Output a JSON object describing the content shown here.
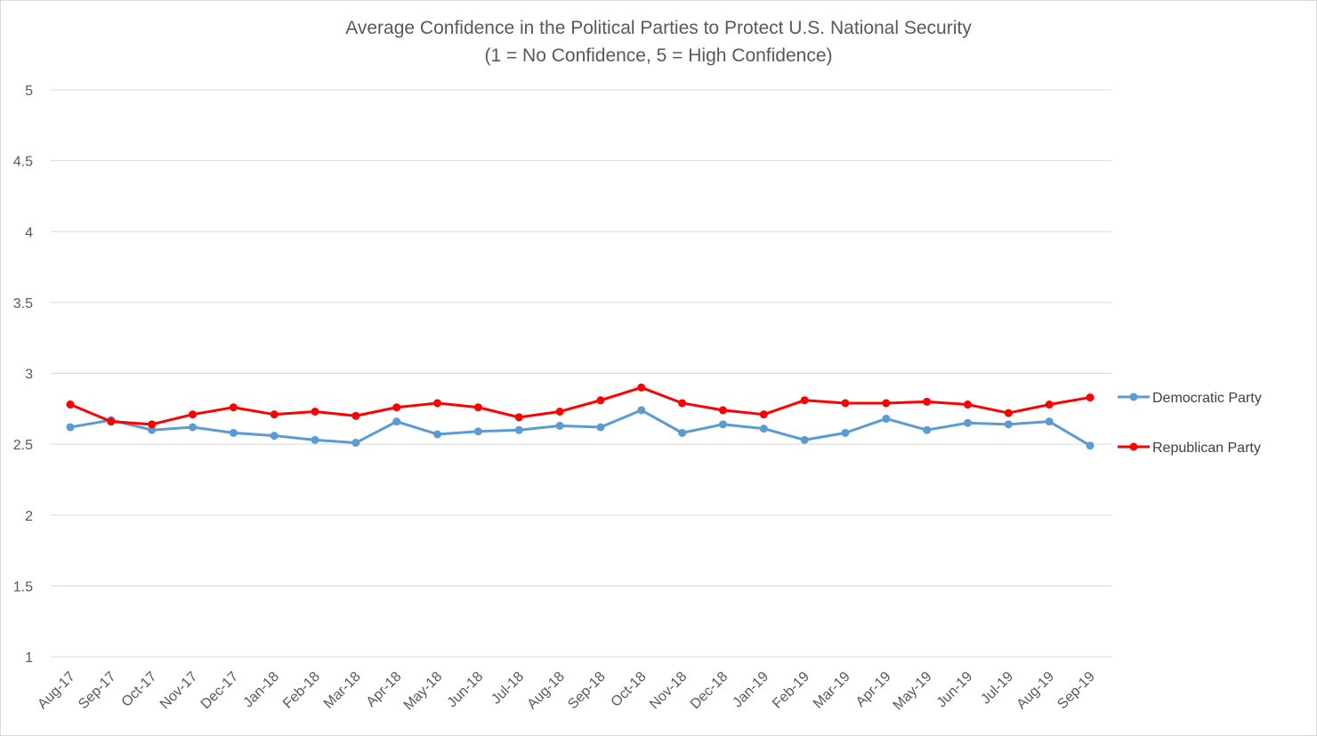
{
  "chart_data": {
    "type": "line",
    "title": "Average Confidence in the Political Parties to Protect U.S. National Security",
    "subtitle": "(1 = No Confidence, 5 = High Confidence)",
    "xlabel": "",
    "ylabel": "",
    "ylim": [
      1,
      5
    ],
    "yticks": [
      "1",
      "1.5",
      "2",
      "2.5",
      "3",
      "3.5",
      "4",
      "4.5",
      "5"
    ],
    "grid": true,
    "legend_position": "right",
    "categories": [
      "Aug-17",
      "Sep-17",
      "Oct-17",
      "Nov-17",
      "Dec-17",
      "Jan-18",
      "Feb-18",
      "Mar-18",
      "Apr-18",
      "May-18",
      "Jun-18",
      "Jul-18",
      "Aug-18",
      "Sep-18",
      "Oct-18",
      "Nov-18",
      "Dec-18",
      "Jan-19",
      "Feb-19",
      "Mar-19",
      "Apr-19",
      "May-19",
      "Jun-19",
      "Jul-19",
      "Aug-19",
      "Sep-19"
    ],
    "series": [
      {
        "name": "Democratic Party",
        "color": "#5b9bd5",
        "values": [
          2.62,
          2.67,
          2.6,
          2.62,
          2.58,
          2.56,
          2.53,
          2.51,
          2.66,
          2.57,
          2.59,
          2.6,
          2.63,
          2.62,
          2.74,
          2.58,
          2.64,
          2.61,
          2.53,
          2.58,
          2.68,
          2.6,
          2.65,
          2.64,
          2.66,
          2.49
        ]
      },
      {
        "name": "Republican Party",
        "color": "#ff0000",
        "values": [
          2.78,
          2.66,
          2.64,
          2.71,
          2.76,
          2.71,
          2.73,
          2.7,
          2.76,
          2.79,
          2.76,
          2.69,
          2.73,
          2.81,
          2.9,
          2.79,
          2.74,
          2.71,
          2.81,
          2.79,
          2.79,
          2.8,
          2.78,
          2.72,
          2.78,
          2.83
        ]
      }
    ]
  }
}
